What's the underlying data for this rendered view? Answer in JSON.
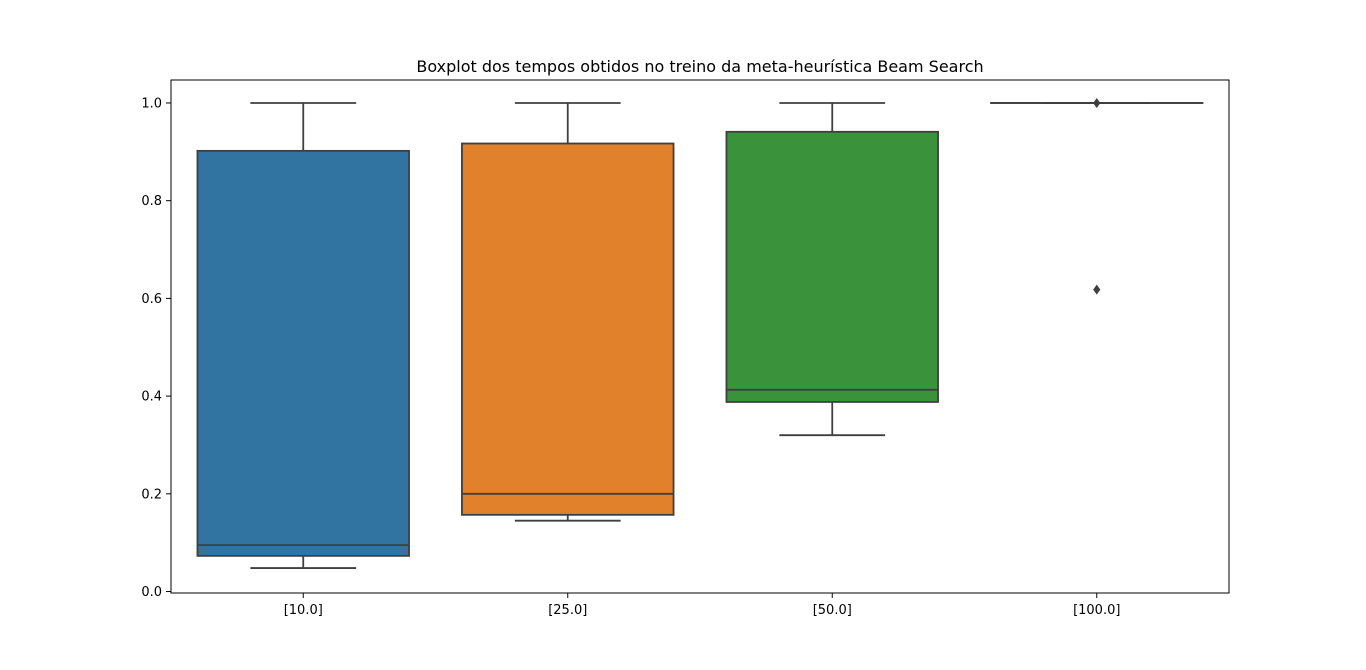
{
  "chart_data": {
    "type": "boxplot",
    "title": "Boxplot dos tempos obtidos no treino da meta-heurística Beam Search",
    "xlabel": "",
    "ylabel": "",
    "categories": [
      "[10.0]",
      "[25.0]",
      "[50.0]",
      "[100.0]"
    ],
    "ylim": [
      -0.003,
      1.047
    ],
    "yticks": [
      0.0,
      0.2,
      0.4,
      0.6,
      0.8,
      1.0
    ],
    "ytick_labels": [
      "0.0",
      "0.2",
      "0.4",
      "0.6",
      "0.8",
      "1.0"
    ],
    "grid": false,
    "legend": "none",
    "boxes": [
      {
        "category": "[10.0]",
        "whisker_low": 0.048,
        "q1": 0.073,
        "median": 0.095,
        "q3": 0.902,
        "whisker_high": 1.0,
        "outliers": [],
        "color": "#3274a1"
      },
      {
        "category": "[25.0]",
        "whisker_low": 0.145,
        "q1": 0.157,
        "median": 0.2,
        "q3": 0.917,
        "whisker_high": 1.0,
        "outliers": [],
        "color": "#e1812c"
      },
      {
        "category": "[50.0]",
        "whisker_low": 0.32,
        "q1": 0.388,
        "median": 0.413,
        "q3": 0.941,
        "whisker_high": 1.0,
        "outliers": [],
        "color": "#3a923a"
      },
      {
        "category": "[100.0]",
        "whisker_low": 1.0,
        "q1": 1.0,
        "median": 1.0,
        "q3": 1.0,
        "whisker_high": 1.0,
        "outliers": [
          0.618,
          1.0
        ],
        "color": "#c03d3e"
      }
    ],
    "colors": {
      "edge": "#3f3f3f",
      "axis": "#000000",
      "text": "#000000"
    }
  }
}
